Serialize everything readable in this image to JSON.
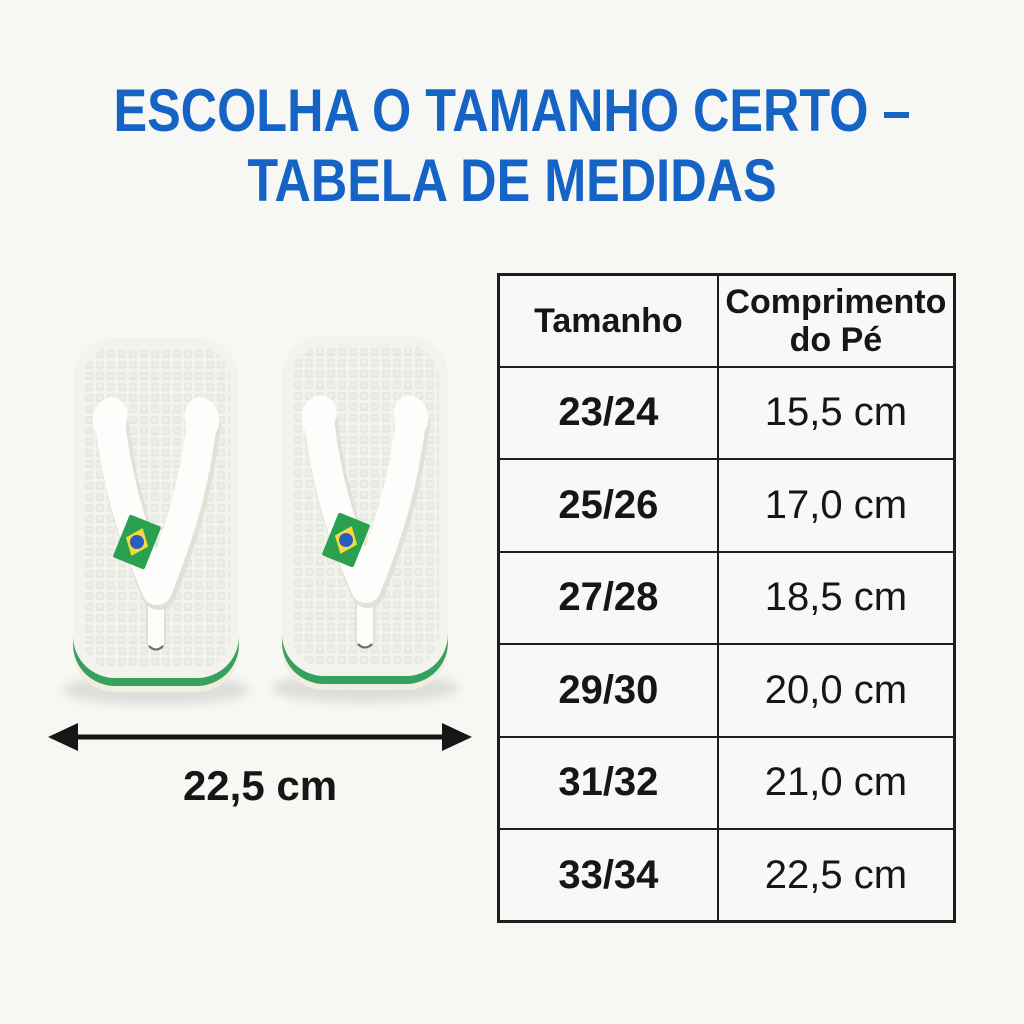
{
  "title": {
    "line1": "ESCOLHA O TAMANHO CERTO –",
    "line2": "TABELA DE MEDIDAS"
  },
  "dimension": {
    "label": "22,5 cm"
  },
  "size_table": {
    "headers": [
      "Tamanho",
      "Comprimento do Pé"
    ],
    "rows": [
      [
        "23/24",
        "15,5 cm"
      ],
      [
        "25/26",
        "17,0 cm"
      ],
      [
        "27/28",
        "18,5 cm"
      ],
      [
        "29/30",
        "20,0 cm"
      ],
      [
        "31/32",
        "21,0 cm"
      ],
      [
        "33/34",
        "22,5 cm"
      ]
    ]
  },
  "chart_data": {
    "type": "table",
    "title": "ESCOLHA O TAMANHO CERTO – TABELA DE MEDIDAS",
    "columns": [
      "Tamanho",
      "Comprimento do Pé"
    ],
    "rows": [
      [
        "23/24",
        "15,5 cm"
      ],
      [
        "25/26",
        "17,0 cm"
      ],
      [
        "27/28",
        "18,5 cm"
      ],
      [
        "29/30",
        "20,0 cm"
      ],
      [
        "31/32",
        "21,0 cm"
      ],
      [
        "33/34",
        "22,5 cm"
      ]
    ],
    "annotations": [
      "22,5 cm sandal width arrow"
    ]
  },
  "colors": {
    "background": "#f7f7f4",
    "title_blue": "#1563c5",
    "text_black": "#161616",
    "table_border": "#1e1e1c",
    "table_bg": "#f8f8f6",
    "sole_top": "#f3f3ee",
    "sole_texture": "#e7e7e0",
    "sole_trim_green": "#36a05f",
    "outsole_cream": "#f1ede0",
    "strap_white": "#fdfdfb",
    "strap_shadow": "#e1e1d8",
    "flag_green": "#2aa14f",
    "flag_yellow": "#f5d93f",
    "flag_blue": "#2a5bbf"
  }
}
